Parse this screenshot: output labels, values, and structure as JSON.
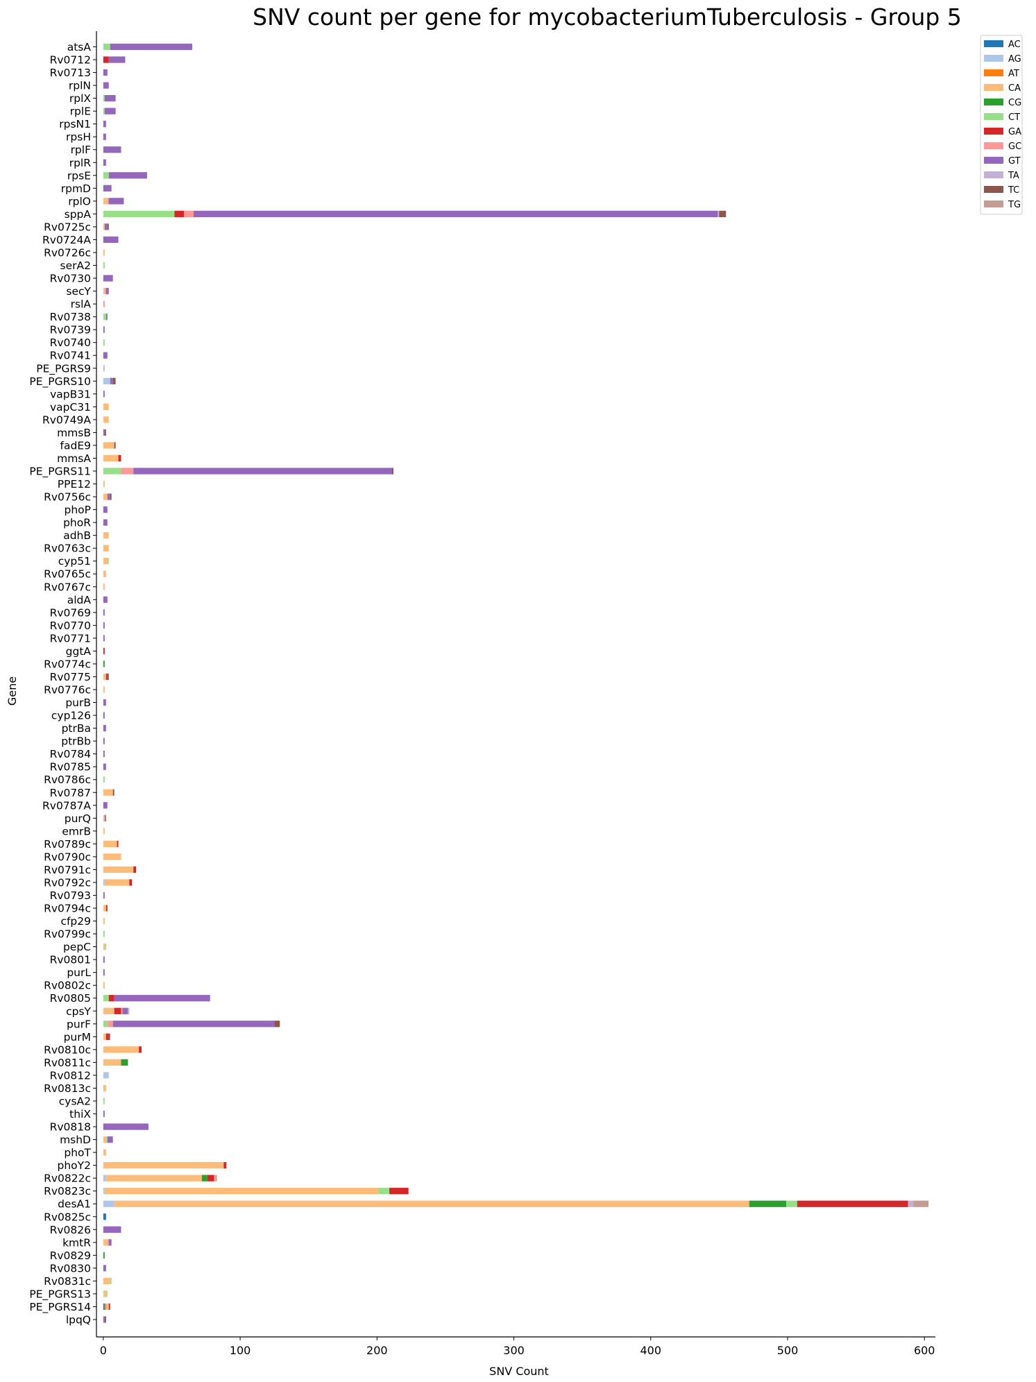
{
  "chart_data": {
    "type": "bar",
    "orientation": "horizontal",
    "stacked": true,
    "title": "SNV count per gene for mycobacteriumTuberculosis - Group 5",
    "xlabel": "SNV Count",
    "ylabel": "Gene",
    "xlim": [
      -5,
      608
    ],
    "xticks": [
      0,
      100,
      200,
      300,
      400,
      500,
      600
    ],
    "grid": false,
    "legend_position": "top-right",
    "categories": [
      "atsA",
      "Rv0712",
      "Rv0713",
      "rplN",
      "rplX",
      "rplE",
      "rpsN1",
      "rpsH",
      "rplF",
      "rplR",
      "rpsE",
      "rpmD",
      "rplO",
      "sppA",
      "Rv0725c",
      "Rv0724A",
      "Rv0726c",
      "serA2",
      "Rv0730",
      "secY",
      "rslA",
      "Rv0738",
      "Rv0739",
      "Rv0740",
      "Rv0741",
      "PE_PGRS9",
      "PE_PGRS10",
      "vapB31",
      "vapC31",
      "Rv0749A",
      "mmsB",
      "fadE9",
      "mmsA",
      "PE_PGRS11",
      "PPE12",
      "Rv0756c",
      "phoP",
      "phoR",
      "adhB",
      "Rv0763c",
      "cyp51",
      "Rv0765c",
      "Rv0767c",
      "aldA",
      "Rv0769",
      "Rv0770",
      "Rv0771",
      "ggtA",
      "Rv0774c",
      "Rv0775",
      "Rv0776c",
      "purB",
      "cyp126",
      "ptrBa",
      "ptrBb",
      "Rv0784",
      "Rv0785",
      "Rv0786c",
      "Rv0787",
      "Rv0787A",
      "purQ",
      "emrB",
      "Rv0789c",
      "Rv0790c",
      "Rv0791c",
      "Rv0792c",
      "Rv0793",
      "Rv0794c",
      "cfp29",
      "Rv0799c",
      "pepC",
      "Rv0801",
      "purL",
      "Rv0802c",
      "Rv0805",
      "cpsY",
      "purF",
      "purM",
      "Rv0810c",
      "Rv0811c",
      "Rv0812",
      "Rv0813c",
      "cysA2",
      "thiX",
      "Rv0818",
      "mshD",
      "phoT",
      "phoY2",
      "Rv0822c",
      "Rv0823c",
      "desA1",
      "Rv0825c",
      "Rv0826",
      "kmtR",
      "Rv0829",
      "Rv0830",
      "Rv0831c",
      "PE_PGRS13",
      "PE_PGRS14",
      "lpqQ"
    ],
    "series": [
      {
        "name": "AC",
        "color": "#1f77b4",
        "values": [
          0,
          0,
          0,
          0,
          0,
          0,
          0,
          0,
          0,
          0,
          0,
          0,
          0,
          0,
          0,
          0,
          0,
          0,
          0,
          0,
          0,
          0,
          0,
          0,
          0,
          0,
          0,
          0,
          0,
          0,
          0,
          0,
          0,
          0,
          0,
          0,
          0,
          0,
          0,
          0,
          0,
          0,
          0,
          0,
          0,
          0,
          0,
          0,
          0,
          0,
          0,
          0,
          0,
          0,
          0,
          0,
          0,
          0,
          0,
          0,
          0,
          0,
          0,
          0,
          0,
          0,
          0,
          0,
          0,
          0,
          0,
          0,
          0,
          0,
          0,
          0,
          0,
          0,
          0,
          0,
          0,
          0,
          0,
          0,
          0,
          0,
          0,
          0,
          0,
          0,
          0,
          2,
          0,
          0,
          0,
          0,
          0,
          0,
          1,
          0
        ]
      },
      {
        "name": "AG",
        "color": "#aec7e8",
        "values": [
          0,
          0,
          0,
          0,
          0,
          0,
          0,
          0,
          0,
          0,
          0,
          0,
          0,
          0,
          0,
          0,
          0,
          0,
          0,
          0,
          0,
          0,
          0,
          0,
          0,
          1,
          5,
          0,
          0,
          0,
          0,
          0,
          0,
          0,
          0,
          0,
          0,
          0,
          0,
          0,
          0,
          0,
          0,
          0,
          0,
          0,
          0,
          0,
          0,
          0,
          0,
          0,
          0,
          0,
          0,
          0,
          0,
          0,
          0,
          0,
          0,
          0,
          0,
          0,
          0,
          1,
          0,
          0,
          0,
          0,
          0,
          0,
          0,
          0,
          0,
          0,
          0,
          0,
          0,
          0,
          4,
          0,
          0,
          0,
          0,
          0,
          0,
          0,
          2,
          1,
          8,
          0,
          0,
          0,
          0,
          0,
          0,
          0,
          0,
          0
        ]
      },
      {
        "name": "AT",
        "color": "#ff7f0e",
        "values": [
          0,
          0,
          0,
          0,
          0,
          0,
          0,
          0,
          0,
          0,
          0,
          0,
          0,
          0,
          0,
          0,
          0,
          0,
          0,
          0,
          0,
          0,
          0,
          0,
          0,
          0,
          0,
          0,
          0,
          0,
          0,
          0,
          0,
          0,
          0,
          0,
          0,
          0,
          0,
          0,
          0,
          0,
          0,
          0,
          0,
          0,
          0,
          0,
          0,
          0,
          0,
          0,
          0,
          0,
          0,
          0,
          0,
          0,
          0,
          0,
          0,
          0,
          0,
          0,
          0,
          0,
          0,
          0,
          0,
          0,
          0,
          0,
          0,
          0,
          0,
          0,
          0,
          0,
          0,
          0,
          0,
          0,
          0,
          0,
          0,
          0,
          0,
          0,
          0,
          0,
          0,
          0,
          0,
          0,
          0,
          0,
          0,
          0,
          1,
          0
        ]
      },
      {
        "name": "CA",
        "color": "#ffbb78",
        "values": [
          0,
          0,
          0,
          0,
          0,
          0,
          0,
          0,
          0,
          0,
          0,
          0,
          3,
          0,
          1,
          0,
          1,
          0,
          0,
          1,
          0,
          0,
          0,
          0,
          0,
          0,
          0,
          0,
          4,
          4,
          0,
          8,
          11,
          0,
          1,
          3,
          0,
          0,
          4,
          4,
          3,
          2,
          1,
          0,
          0,
          0,
          0,
          0,
          0,
          2,
          1,
          0,
          0,
          0,
          0,
          0,
          0,
          0,
          7,
          0,
          1,
          1,
          10,
          13,
          22,
          18,
          0,
          2,
          1,
          0,
          1,
          0,
          0,
          1,
          0,
          8,
          0,
          2,
          26,
          13,
          0,
          2,
          0,
          0,
          0,
          2,
          2,
          88,
          70,
          200,
          464,
          0,
          0,
          3,
          0,
          0,
          5,
          2,
          2,
          0
        ]
      },
      {
        "name": "CG",
        "color": "#2ca02c",
        "values": [
          0,
          0,
          0,
          0,
          0,
          0,
          0,
          0,
          0,
          0,
          0,
          0,
          0,
          0,
          0,
          0,
          0,
          0,
          0,
          0,
          0,
          0,
          0,
          0,
          0,
          0,
          0,
          0,
          0,
          0,
          0,
          0,
          0,
          0,
          0,
          0,
          0,
          0,
          0,
          0,
          0,
          0,
          0,
          0,
          0,
          0,
          0,
          0,
          1,
          0,
          0,
          0,
          0,
          0,
          0,
          0,
          0,
          0,
          0,
          0,
          0,
          0,
          0,
          0,
          0,
          0,
          0,
          0,
          0,
          0,
          0,
          0,
          0,
          0,
          0,
          0,
          0,
          0,
          0,
          5,
          0,
          0,
          0,
          0,
          0,
          0,
          0,
          0,
          4,
          0,
          27,
          0,
          0,
          0,
          1,
          0,
          0,
          0,
          0,
          0
        ]
      },
      {
        "name": "CT",
        "color": "#98df8a",
        "values": [
          5,
          0,
          0,
          0,
          1,
          1,
          0,
          0,
          0,
          0,
          4,
          0,
          0,
          52,
          0,
          0,
          0,
          1,
          0,
          0,
          0,
          2,
          0,
          1,
          0,
          0,
          0,
          0,
          0,
          0,
          0,
          0,
          0,
          13,
          0,
          0,
          0,
          0,
          0,
          0,
          1,
          0,
          0,
          0,
          0,
          0,
          0,
          0,
          0,
          0,
          0,
          0,
          0,
          0,
          0,
          0,
          0,
          1,
          0,
          0,
          0,
          0,
          0,
          0,
          0,
          0,
          0,
          0,
          0,
          1,
          1,
          0,
          0,
          0,
          4,
          0,
          3,
          0,
          0,
          0,
          0,
          0,
          1,
          0,
          0,
          1,
          0,
          0,
          0,
          8,
          8,
          0,
          0,
          0,
          0,
          0,
          1,
          1,
          0,
          0
        ]
      },
      {
        "name": "GA",
        "color": "#d62728",
        "values": [
          0,
          4,
          0,
          0,
          0,
          0,
          0,
          0,
          0,
          0,
          0,
          0,
          0,
          7,
          0,
          0,
          0,
          0,
          0,
          0,
          0,
          0,
          0,
          0,
          0,
          0,
          0,
          0,
          0,
          0,
          0,
          0,
          2,
          0,
          0,
          0,
          0,
          0,
          0,
          0,
          0,
          0,
          0,
          0,
          0,
          0,
          0,
          1,
          0,
          1,
          0,
          0,
          0,
          0,
          0,
          0,
          0,
          0,
          0,
          0,
          0,
          0,
          1,
          0,
          2,
          2,
          0,
          1,
          0,
          0,
          0,
          0,
          0,
          0,
          4,
          5,
          0,
          2,
          2,
          0,
          0,
          0,
          0,
          0,
          0,
          0,
          0,
          2,
          5,
          14,
          81,
          0,
          0,
          0,
          0,
          0,
          0,
          0,
          1,
          0
        ]
      },
      {
        "name": "GC",
        "color": "#ff9896",
        "values": [
          0,
          0,
          0,
          0,
          0,
          0,
          0,
          0,
          0,
          0,
          0,
          0,
          1,
          7,
          0,
          0,
          0,
          0,
          0,
          1,
          1,
          0,
          0,
          0,
          0,
          0,
          0,
          0,
          0,
          0,
          0,
          0,
          0,
          9,
          0,
          0,
          0,
          0,
          0,
          0,
          0,
          0,
          0,
          0,
          0,
          0,
          0,
          0,
          0,
          0,
          0,
          0,
          0,
          0,
          0,
          0,
          0,
          0,
          0,
          0,
          0,
          0,
          0,
          0,
          0,
          0,
          0,
          0,
          0,
          0,
          0,
          0,
          0,
          0,
          0,
          1,
          4,
          0,
          0,
          0,
          0,
          0,
          0,
          0,
          0,
          0,
          0,
          0,
          1,
          0,
          0,
          0,
          0,
          1,
          0,
          0,
          0,
          0,
          0,
          0
        ]
      },
      {
        "name": "GT",
        "color": "#9467bd",
        "values": [
          60,
          12,
          3,
          4,
          8,
          8,
          2,
          2,
          13,
          2,
          28,
          6,
          11,
          383,
          2,
          11,
          0,
          0,
          7,
          2,
          0,
          1,
          1,
          0,
          3,
          0,
          2,
          1,
          0,
          0,
          1,
          0,
          0,
          189,
          0,
          2,
          3,
          3,
          0,
          0,
          0,
          0,
          0,
          3,
          1,
          1,
          1,
          0,
          0,
          0,
          0,
          2,
          1,
          2,
          1,
          1,
          2,
          0,
          0,
          3,
          1,
          0,
          0,
          0,
          0,
          0,
          1,
          0,
          0,
          0,
          0,
          1,
          1,
          0,
          70,
          4,
          118,
          0,
          0,
          0,
          0,
          0,
          0,
          1,
          33,
          4,
          0,
          0,
          0,
          0,
          0,
          0,
          13,
          2,
          0,
          2,
          0,
          0,
          0,
          1
        ]
      },
      {
        "name": "TA",
        "color": "#c5b0d5",
        "values": [
          0,
          0,
          0,
          0,
          0,
          0,
          0,
          0,
          0,
          0,
          0,
          0,
          0,
          1,
          0,
          0,
          0,
          0,
          0,
          0,
          0,
          0,
          0,
          0,
          0,
          0,
          0,
          0,
          0,
          0,
          0,
          0,
          0,
          0,
          0,
          0,
          0,
          0,
          0,
          0,
          0,
          0,
          0,
          0,
          0,
          0,
          0,
          0,
          0,
          0,
          0,
          0,
          0,
          0,
          0,
          0,
          0,
          0,
          0,
          0,
          0,
          0,
          0,
          0,
          0,
          0,
          0,
          0,
          0,
          0,
          0,
          0,
          0,
          0,
          0,
          1,
          0,
          0,
          0,
          0,
          0,
          0,
          0,
          0,
          0,
          0,
          0,
          0,
          0,
          0,
          4,
          0,
          0,
          0,
          0,
          0,
          0,
          0,
          0,
          0
        ]
      },
      {
        "name": "TC",
        "color": "#8c564b",
        "values": [
          0,
          0,
          0,
          0,
          0,
          0,
          0,
          0,
          0,
          0,
          0,
          0,
          0,
          5,
          1,
          0,
          0,
          0,
          0,
          0,
          0,
          0,
          0,
          0,
          0,
          0,
          2,
          0,
          0,
          0,
          1,
          1,
          0,
          1,
          0,
          1,
          0,
          0,
          0,
          0,
          0,
          0,
          0,
          0,
          0,
          0,
          0,
          0,
          0,
          1,
          0,
          0,
          0,
          0,
          0,
          0,
          0,
          0,
          1,
          0,
          0,
          0,
          0,
          0,
          0,
          0,
          0,
          0,
          0,
          0,
          0,
          0,
          0,
          0,
          0,
          0,
          4,
          1,
          0,
          0,
          0,
          0,
          0,
          0,
          0,
          0,
          0,
          0,
          0,
          0,
          0,
          0,
          0,
          0,
          0,
          0,
          0,
          0,
          0,
          1
        ]
      },
      {
        "name": "TG",
        "color": "#c49c94",
        "values": [
          0,
          0,
          0,
          0,
          0,
          0,
          0,
          0,
          0,
          0,
          0,
          0,
          0,
          0,
          0,
          0,
          0,
          0,
          0,
          0,
          0,
          0,
          0,
          0,
          0,
          0,
          0,
          0,
          0,
          0,
          0,
          0,
          0,
          0,
          0,
          0,
          0,
          0,
          0,
          0,
          0,
          0,
          0,
          0,
          0,
          0,
          0,
          0,
          0,
          0,
          0,
          0,
          0,
          0,
          0,
          0,
          0,
          0,
          0,
          0,
          0,
          0,
          0,
          0,
          0,
          0,
          0,
          0,
          0,
          0,
          0,
          0,
          0,
          0,
          0,
          0,
          0,
          0,
          0,
          0,
          0,
          0,
          0,
          0,
          0,
          0,
          0,
          0,
          1,
          0,
          11,
          0,
          0,
          0,
          0,
          0,
          0,
          0,
          0,
          0
        ]
      }
    ]
  }
}
